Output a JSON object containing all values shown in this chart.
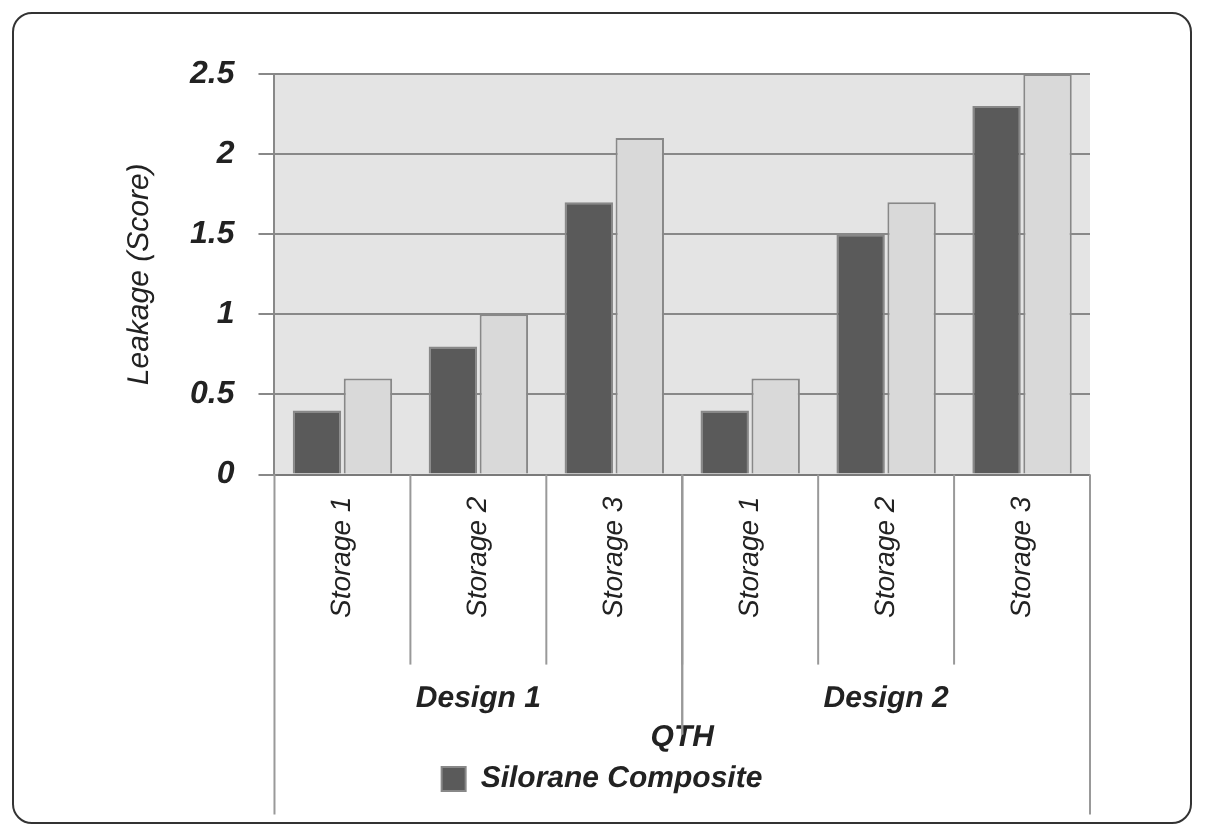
{
  "chart_data": {
    "type": "bar",
    "ylabel": "Leakage (Score)",
    "xlabel": "QTH",
    "categories": [
      "Storage 1",
      "Storage 2",
      "Storage 3",
      "Storage 1",
      "Storage 2",
      "Storage 3"
    ],
    "series": [
      {
        "name": "Silorane Composite",
        "color": "#5a5a5a",
        "values": [
          0.4,
          0.8,
          1.7,
          0.4,
          1.5,
          2.3
        ]
      },
      {
        "color": "#d9d9d9",
        "values": [
          0.6,
          1.0,
          2.1,
          0.6,
          1.7,
          2.5
        ]
      }
    ],
    "annotations": [
      "Design 1",
      "Design 2"
    ],
    "ylim": [
      0,
      2.5
    ],
    "yticks": [
      0,
      0.5,
      1,
      1.5,
      2,
      2.5
    ],
    "grid": "y",
    "legend": "bottom"
  }
}
